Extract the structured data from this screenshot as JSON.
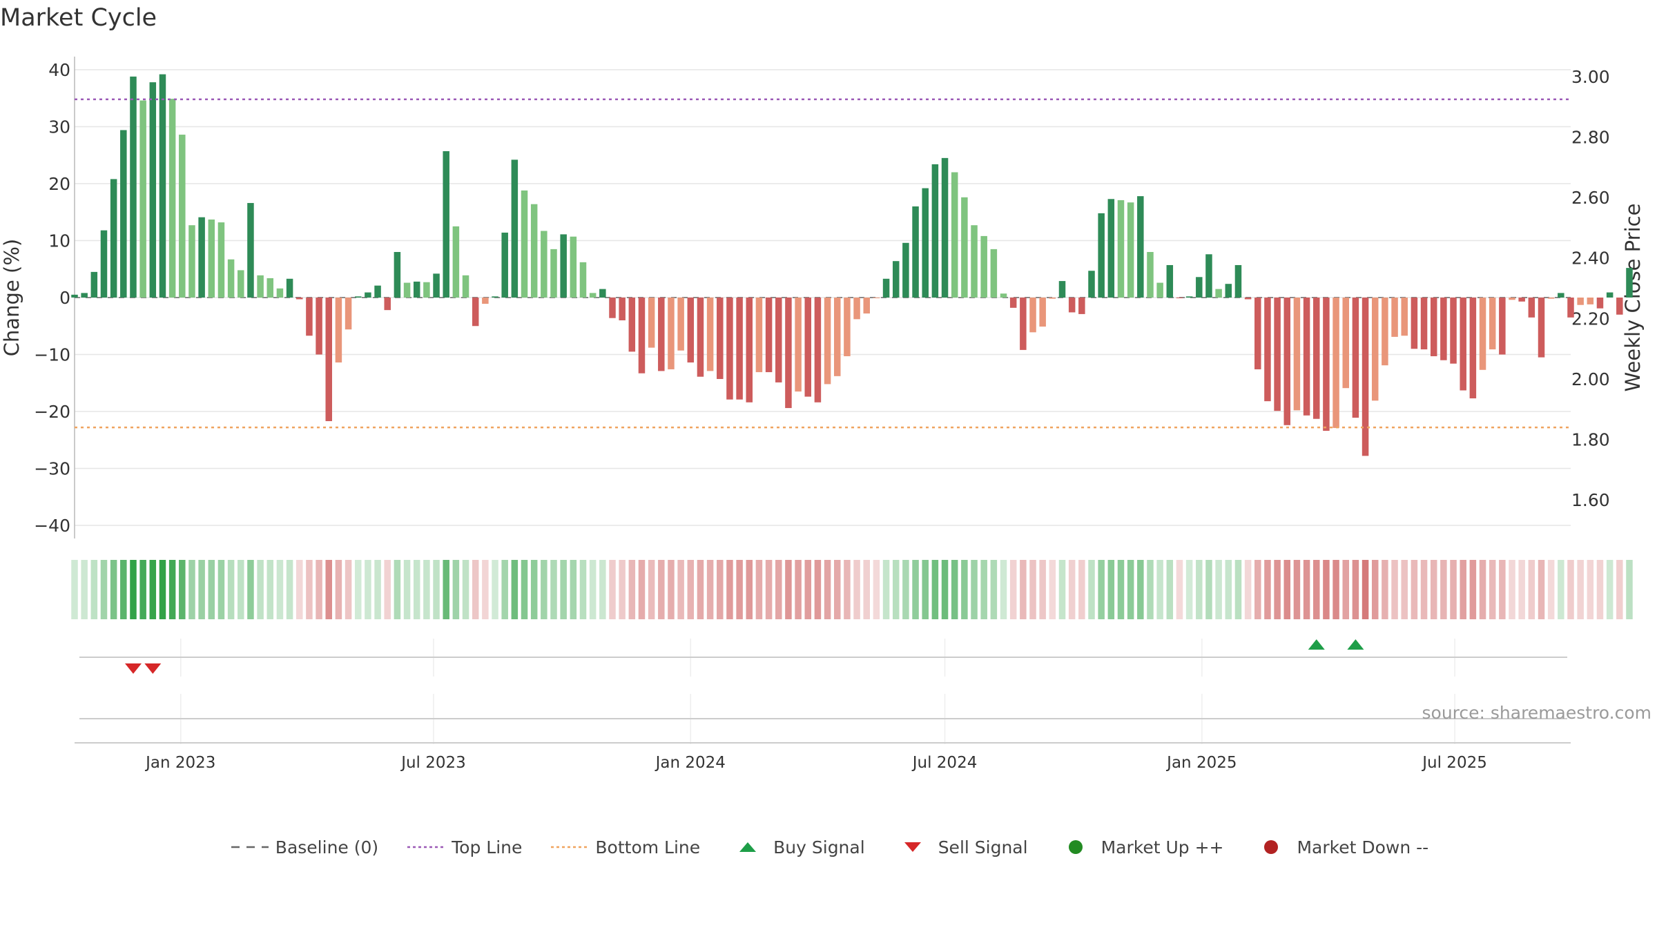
{
  "chart_data": {
    "type": "bar",
    "title": "Market Cycle",
    "ylabel": "Change (%)",
    "y2label": "Weekly Close Price",
    "ylim": [
      -42,
      42
    ],
    "y2lim": [
      1.5,
      3.05
    ],
    "yticks": [
      40,
      30,
      20,
      10,
      0,
      -10,
      -20,
      -30,
      -40
    ],
    "yticklabels": [
      "40",
      "30",
      "20",
      "10",
      "0",
      "−10",
      "−20",
      "−30",
      "−40"
    ],
    "y2ticks": [
      3.0,
      2.8,
      2.6,
      2.4,
      2.2,
      2.0,
      1.8,
      1.6
    ],
    "y2ticklabels": [
      "3.00",
      "2.80",
      "2.60",
      "2.40",
      "2.20",
      "2.00",
      "1.80",
      "1.60"
    ],
    "top_line": 34.8,
    "bottom_line": -22.8,
    "x_start": "2022-10-17",
    "x_end": "2025-09-22",
    "xticks": [
      "2023-01-01",
      "2023-07-01",
      "2024-01-01",
      "2024-07-01",
      "2025-01-01",
      "2025-07-01"
    ],
    "xticklabels": [
      "Jan 2023",
      "Jul 2023",
      "Jan 2024",
      "Jul 2024",
      "Jan 2025",
      "Jul 2025"
    ],
    "week_start": "2022-10-17",
    "values": [
      0.5,
      0.8,
      4.5,
      11.8,
      20.8,
      29.4,
      38.8,
      34.6,
      37.8,
      39.2,
      34.9,
      28.6,
      12.7,
      14.1,
      13.7,
      13.2,
      6.7,
      4.8,
      16.6,
      3.9,
      3.4,
      1.6,
      3.3,
      -0.3,
      -6.7,
      -10.0,
      -21.7,
      -11.4,
      -5.6,
      0.2,
      0.9,
      2.1,
      -2.2,
      8.0,
      2.6,
      2.8,
      2.7,
      4.2,
      25.7,
      12.5,
      3.9,
      -5.0,
      -1.1,
      0.2,
      11.4,
      24.2,
      18.8,
      16.4,
      11.7,
      8.5,
      11.1,
      10.7,
      6.2,
      0.8,
      1.5,
      -3.6,
      -4.0,
      -9.5,
      -13.3,
      -8.8,
      -12.9,
      -12.6,
      -9.3,
      -11.4,
      -13.9,
      -12.9,
      -14.3,
      -17.9,
      -17.9,
      -18.4,
      -13.1,
      -13.1,
      -14.9,
      -19.4,
      -16.5,
      -17.4,
      -18.4,
      -15.2,
      -13.8,
      -10.3,
      -3.8,
      -2.8,
      -0.1,
      3.3,
      6.4,
      9.6,
      16.0,
      19.2,
      23.4,
      24.5,
      22.0,
      17.6,
      12.7,
      10.8,
      8.5,
      0.7,
      -1.8,
      -9.2,
      -6.1,
      -5.1,
      -0.2,
      2.9,
      -2.6,
      -2.9,
      4.7,
      14.8,
      17.3,
      17.1,
      16.7,
      17.8,
      8.0,
      2.6,
      5.7,
      -0.1,
      0.2,
      3.6,
      7.6,
      1.5,
      2.4,
      5.7,
      -0.3,
      -12.6,
      -18.2,
      -19.9,
      -22.4,
      -19.8,
      -20.7,
      -21.3,
      -23.4,
      -22.9,
      -15.9,
      -21.1,
      -27.8,
      -18.1,
      -11.9,
      -6.9,
      -6.7,
      -9.0,
      -9.1,
      -10.3,
      -11.0,
      -11.6,
      -16.3,
      -17.7,
      -12.7,
      -9.1,
      -10.0,
      -0.4,
      -0.7,
      -3.5,
      -10.5,
      -0.2,
      0.8,
      -3.5,
      -1.3,
      -1.2,
      -1.9,
      0.9,
      -3.0,
      5.2
    ],
    "colors": {
      "up_strong": "#2e8b57",
      "up_weak": "#7fc47f",
      "down_strong": "#cd5c5c",
      "down_weak": "#e9967a",
      "top_line": "#9b59b6",
      "bottom_line": "#f0a35e",
      "buy": "#1e9e48",
      "sell": "#d62728",
      "market_up": "#228b22",
      "market_down": "#b22222",
      "grid": "#e6e6e6",
      "axis": "#b8b8b8"
    },
    "buy_signals": [
      127,
      131
    ],
    "sell_signals": [
      6,
      8
    ],
    "legend": [
      {
        "label": "Baseline (0)",
        "symbol": "dash",
        "color": "#666666"
      },
      {
        "label": "Top Line",
        "symbol": "dotted",
        "color": "#9b59b6"
      },
      {
        "label": "Bottom Line",
        "symbol": "dotted",
        "color": "#f0a35e"
      },
      {
        "label": "Buy Signal",
        "symbol": "triangle-up",
        "color": "#1e9e48"
      },
      {
        "label": "Sell Signal",
        "symbol": "triangle-down",
        "color": "#d62728"
      },
      {
        "label": "Market Up ++",
        "symbol": "circle",
        "color": "#228b22"
      },
      {
        "label": "Market Down --",
        "symbol": "circle",
        "color": "#b22222"
      }
    ]
  },
  "source": "source: sharemaestro.com"
}
